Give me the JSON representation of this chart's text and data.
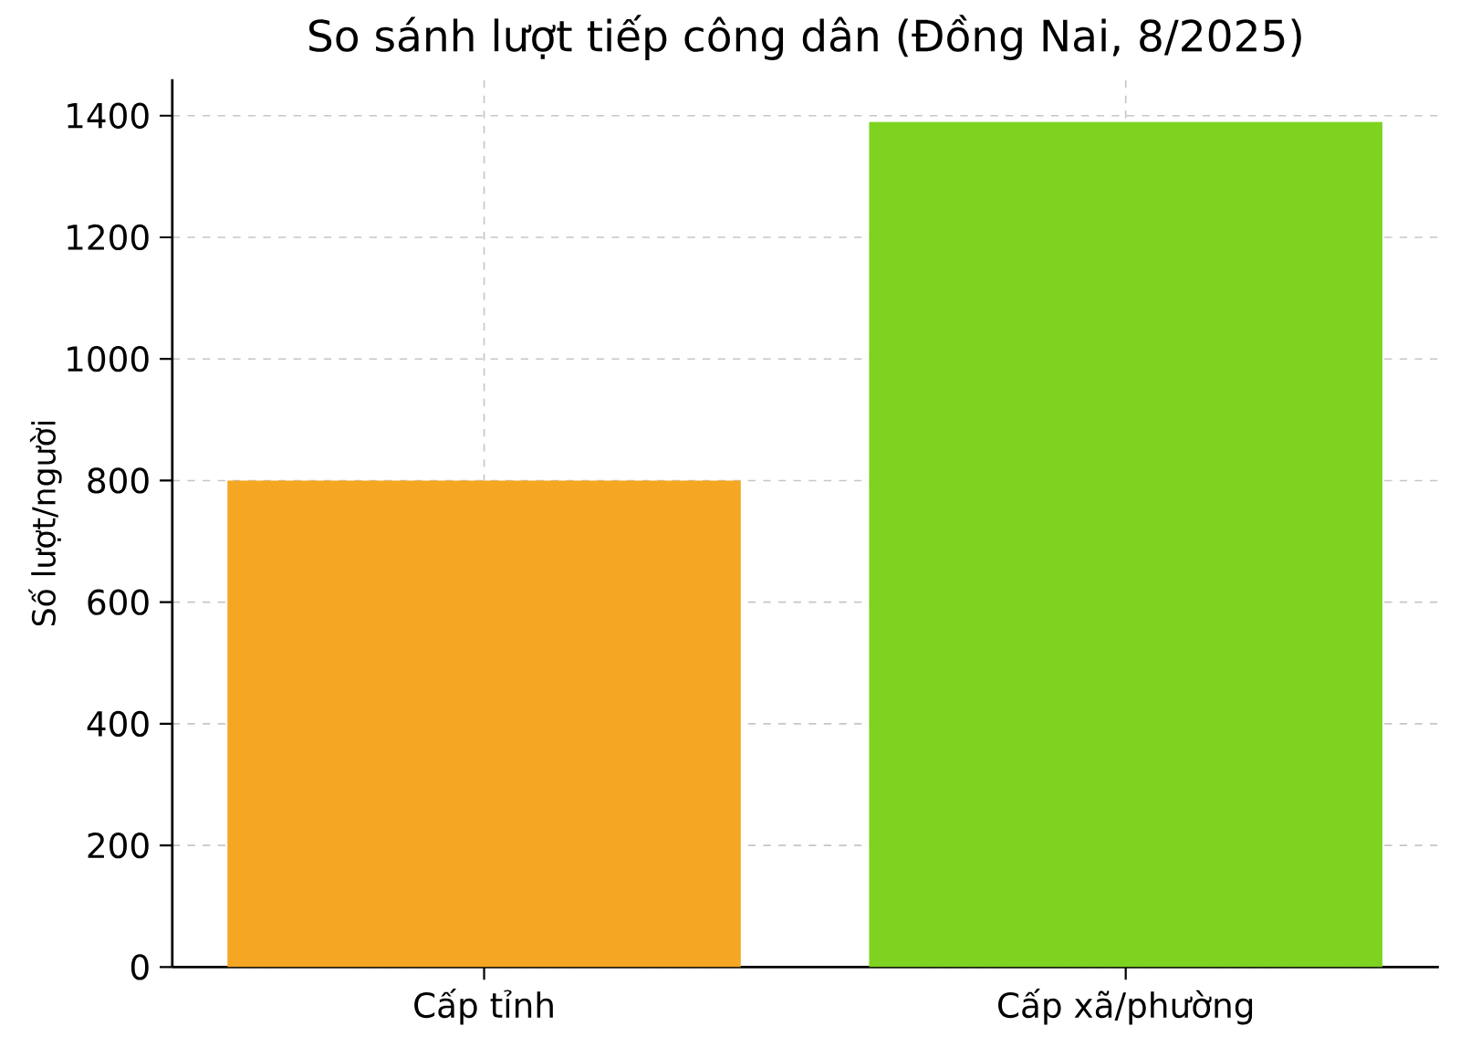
{
  "chart_data": {
    "type": "bar",
    "title": "So sánh lượt tiếp công dân (Đồng Nai, 8/2025)",
    "ylabel": "Số lượt/người",
    "categories": [
      "Cấp tỉnh",
      "Cấp xã/phường"
    ],
    "values": [
      800,
      1390
    ],
    "colors": [
      "#f5a623",
      "#7ed321"
    ],
    "ylim": [
      0,
      1460
    ],
    "yticks": [
      0,
      200,
      400,
      600,
      800,
      1000,
      1200,
      1400
    ],
    "grid": true
  }
}
